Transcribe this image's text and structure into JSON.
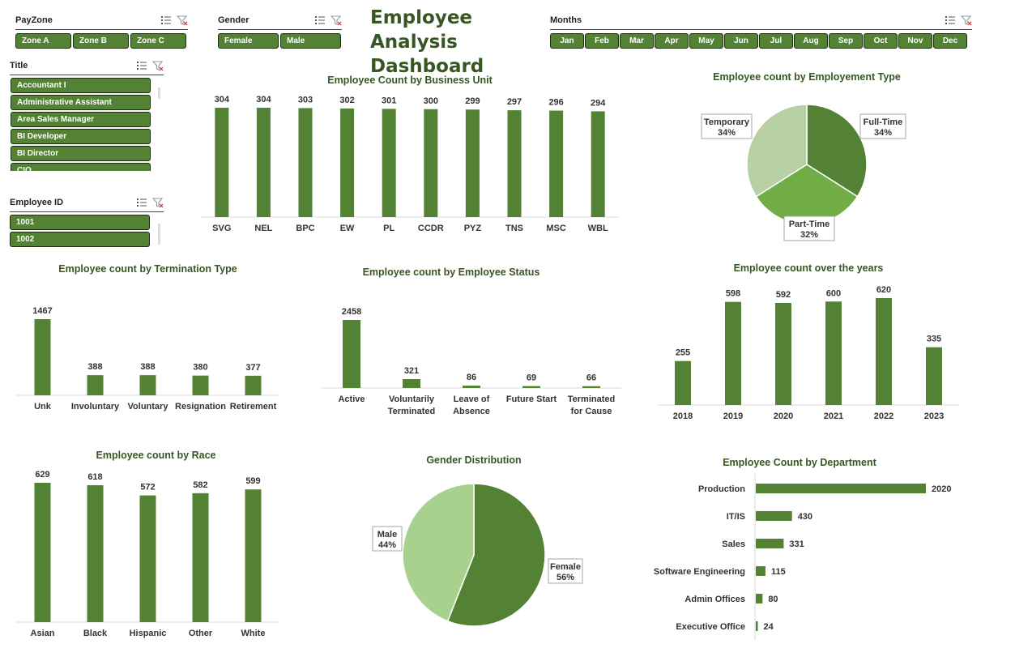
{
  "dashboard_title": "Employee Analysis Dashboard",
  "title_line1": "Employee Analysis",
  "title_line2": "Dashboard",
  "colors": {
    "accent": "#548235",
    "dark": "#375623",
    "light": "#70ad47",
    "pale": "#b7d0a4",
    "pale2": "#a9d18e"
  },
  "slicers": {
    "payzone": {
      "title": "PayZone",
      "items": [
        "Zone A",
        "Zone B",
        "Zone C"
      ]
    },
    "gender": {
      "title": "Gender",
      "items": [
        "Female",
        "Male"
      ]
    },
    "months": {
      "title": "Months",
      "items": [
        "Jan",
        "Feb",
        "Mar",
        "Apr",
        "May",
        "Jun",
        "Jul",
        "Aug",
        "Sep",
        "Oct",
        "Nov",
        "Dec"
      ]
    },
    "title": {
      "title": "Title",
      "items": [
        "Accountant I",
        "Administrative Assistant",
        "Area Sales Manager",
        "BI Developer",
        "BI Director",
        "CIO"
      ]
    },
    "employee_id": {
      "title": "Employee ID",
      "items": [
        "1001",
        "1002"
      ]
    }
  },
  "chart_data": [
    {
      "id": "business_unit",
      "type": "bar",
      "title": "Employee Count by Business Unit",
      "categories": [
        "SVG",
        "NEL",
        "BPC",
        "EW",
        "PL",
        "CCDR",
        "PYZ",
        "TNS",
        "MSC",
        "WBL"
      ],
      "values": [
        304,
        304,
        303,
        302,
        301,
        300,
        299,
        297,
        296,
        294
      ]
    },
    {
      "id": "employment_type",
      "type": "pie",
      "title": "Employee count by Employement Type",
      "slices": [
        {
          "label": "Full-Time",
          "pct": "34%",
          "value": 34
        },
        {
          "label": "Part-Time",
          "pct": "32%",
          "value": 32
        },
        {
          "label": "Temporary",
          "pct": "34%",
          "value": 34
        }
      ]
    },
    {
      "id": "termination_type",
      "type": "bar",
      "title": "Employee count by Termination Type",
      "categories": [
        "Unk",
        "Involuntary",
        "Voluntary",
        "Resignation",
        "Retirement"
      ],
      "values": [
        1467,
        388,
        388,
        380,
        377
      ]
    },
    {
      "id": "employee_status",
      "type": "bar",
      "title": "Employee count by Employee Status",
      "categories": [
        [
          "Active"
        ],
        [
          "Voluntarily",
          "Terminated"
        ],
        [
          "Leave of",
          "Absence"
        ],
        [
          "Future Start"
        ],
        [
          "Terminated",
          "for Cause"
        ]
      ],
      "values": [
        2458,
        321,
        86,
        69,
        66
      ]
    },
    {
      "id": "years",
      "type": "bar",
      "title": "Employee count over the years",
      "categories": [
        "2018",
        "2019",
        "2020",
        "2021",
        "2022",
        "2023"
      ],
      "values": [
        255,
        598,
        592,
        600,
        620,
        335
      ]
    },
    {
      "id": "race",
      "type": "bar",
      "title": "Employee count by Race",
      "categories": [
        "Asian",
        "Black",
        "Hispanic",
        "Other",
        "White"
      ],
      "values": [
        629,
        618,
        572,
        582,
        599
      ]
    },
    {
      "id": "gender",
      "type": "pie",
      "title": "Gender Distribution",
      "slices": [
        {
          "label": "Female",
          "pct": "56%",
          "value": 56
        },
        {
          "label": "Male",
          "pct": "44%",
          "value": 44
        }
      ]
    },
    {
      "id": "department",
      "type": "bar",
      "title": "Employee Count by Department",
      "categories": [
        "Production",
        "IT/IS",
        "Sales",
        "Software Engineering",
        "Admin Offices",
        "Executive Office"
      ],
      "values": [
        2020,
        430,
        331,
        115,
        80,
        24
      ]
    }
  ]
}
